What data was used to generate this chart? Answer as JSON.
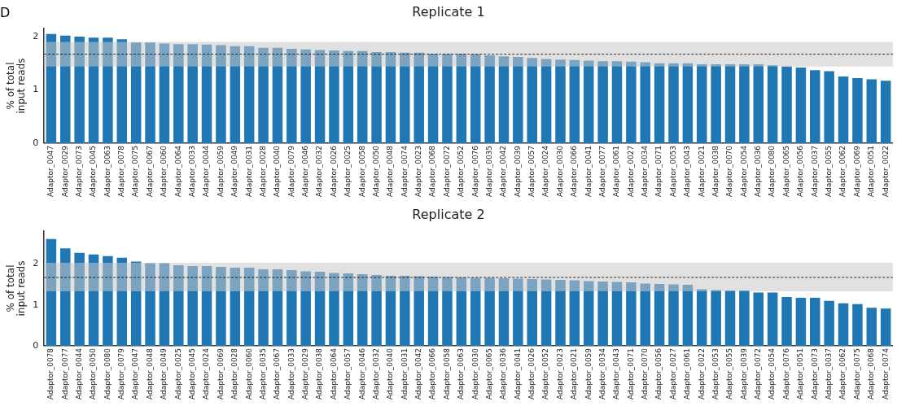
{
  "chart_data": [
    {
      "type": "bar",
      "title": "Replicate 1",
      "ylabel": "% of total\ninput reads",
      "annotations": [
        "D"
      ],
      "categories": [
        "Adaptor_0047",
        "Adaptor_0029",
        "Adaptor_0073",
        "Adaptor_0045",
        "Adaptor_0063",
        "Adaptor_0078",
        "Adaptor_0075",
        "Adaptor_0067",
        "Adaptor_0060",
        "Adaptor_0064",
        "Adaptor_0033",
        "Adaptor_0044",
        "Adaptor_0059",
        "Adaptor_0049",
        "Adaptor_0031",
        "Adaptor_0028",
        "Adaptor_0040",
        "Adaptor_0079",
        "Adaptor_0046",
        "Adaptor_0032",
        "Adaptor_0026",
        "Adaptor_0025",
        "Adaptor_0058",
        "Adaptor_0050",
        "Adaptor_0048",
        "Adaptor_0074",
        "Adaptor_0023",
        "Adaptor_0068",
        "Adaptor_0072",
        "Adaptor_0052",
        "Adaptor_0076",
        "Adaptor_0035",
        "Adaptor_0042",
        "Adaptor_0039",
        "Adaptor_0057",
        "Adaptor_0024",
        "Adaptor_0030",
        "Adaptor_0066",
        "Adaptor_0041",
        "Adaptor_0077",
        "Adaptor_0061",
        "Adaptor_0027",
        "Adaptor_0034",
        "Adaptor_0071",
        "Adaptor_0053",
        "Adaptor_0043",
        "Adaptor_0021",
        "Adaptor_0038",
        "Adaptor_0070",
        "Adaptor_0054",
        "Adaptor_0036",
        "Adaptor_0080",
        "Adaptor_0065",
        "Adaptor_0056",
        "Adaptor_0037",
        "Adaptor_0055",
        "Adaptor_0062",
        "Adaptor_0069",
        "Adaptor_0051",
        "Adaptor_0022"
      ],
      "values": [
        2.05,
        2.02,
        2.0,
        1.98,
        1.98,
        1.95,
        1.89,
        1.89,
        1.87,
        1.86,
        1.86,
        1.85,
        1.84,
        1.82,
        1.82,
        1.79,
        1.79,
        1.77,
        1.76,
        1.75,
        1.74,
        1.73,
        1.73,
        1.71,
        1.71,
        1.7,
        1.7,
        1.68,
        1.68,
        1.68,
        1.67,
        1.65,
        1.63,
        1.62,
        1.6,
        1.58,
        1.57,
        1.56,
        1.55,
        1.54,
        1.54,
        1.53,
        1.52,
        1.5,
        1.5,
        1.5,
        1.48,
        1.48,
        1.48,
        1.48,
        1.48,
        1.46,
        1.44,
        1.42,
        1.37,
        1.35,
        1.25,
        1.22,
        1.2,
        1.17
      ],
      "color": "#1f77b4",
      "ylim": [
        0,
        2.15
      ],
      "yticks": [
        0,
        1,
        2
      ],
      "grid": false,
      "legend": false,
      "ref_lines": [
        {
          "axis": "y",
          "value": 1.67,
          "color": "#000000",
          "line_style": "dashed"
        }
      ],
      "bands": [
        {
          "axis": "y",
          "from": 1.44,
          "to": 1.9,
          "color": "#c8c8c8"
        }
      ]
    },
    {
      "type": "bar",
      "title": "Replicate 2",
      "ylabel": "% of total\ninput reads",
      "categories": [
        "Adaptor_0078",
        "Adaptor_0077",
        "Adaptor_0044",
        "Adaptor_0050",
        "Adaptor_0080",
        "Adaptor_0079",
        "Adaptor_0047",
        "Adaptor_0048",
        "Adaptor_0049",
        "Adaptor_0025",
        "Adaptor_0045",
        "Adaptor_0024",
        "Adaptor_0069",
        "Adaptor_0028",
        "Adaptor_0060",
        "Adaptor_0035",
        "Adaptor_0067",
        "Adaptor_0033",
        "Adaptor_0029",
        "Adaptor_0038",
        "Adaptor_0064",
        "Adaptor_0057",
        "Adaptor_0046",
        "Adaptor_0032",
        "Adaptor_0040",
        "Adaptor_0031",
        "Adaptor_0042",
        "Adaptor_0066",
        "Adaptor_0058",
        "Adaptor_0063",
        "Adaptor_0030",
        "Adaptor_0065",
        "Adaptor_0036",
        "Adaptor_0041",
        "Adaptor_0026",
        "Adaptor_0052",
        "Adaptor_0023",
        "Adaptor_0021",
        "Adaptor_0059",
        "Adaptor_0034",
        "Adaptor_0043",
        "Adaptor_0071",
        "Adaptor_0070",
        "Adaptor_0056",
        "Adaptor_0027",
        "Adaptor_0061",
        "Adaptor_0022",
        "Adaptor_0053",
        "Adaptor_0055",
        "Adaptor_0039",
        "Adaptor_0072",
        "Adaptor_0054",
        "Adaptor_0076",
        "Adaptor_0051",
        "Adaptor_0073",
        "Adaptor_0037",
        "Adaptor_0062",
        "Adaptor_0075",
        "Adaptor_0068",
        "Adaptor_0074"
      ],
      "values": [
        2.61,
        2.38,
        2.27,
        2.23,
        2.19,
        2.15,
        2.06,
        2.02,
        2.02,
        1.97,
        1.95,
        1.95,
        1.93,
        1.91,
        1.91,
        1.87,
        1.87,
        1.85,
        1.82,
        1.81,
        1.78,
        1.77,
        1.75,
        1.73,
        1.71,
        1.71,
        1.7,
        1.69,
        1.68,
        1.67,
        1.66,
        1.66,
        1.65,
        1.64,
        1.63,
        1.62,
        1.61,
        1.6,
        1.58,
        1.57,
        1.56,
        1.55,
        1.52,
        1.51,
        1.5,
        1.49,
        1.38,
        1.36,
        1.35,
        1.35,
        1.3,
        1.3,
        1.19,
        1.17,
        1.17,
        1.1,
        1.04,
        1.02,
        0.93,
        0.91
      ],
      "color": "#1f77b4",
      "ylim": [
        0,
        2.8
      ],
      "yticks": [
        0,
        1,
        2
      ],
      "grid": false,
      "legend": false,
      "ref_lines": [
        {
          "axis": "y",
          "value": 1.67,
          "color": "#000000",
          "line_style": "dashed"
        }
      ],
      "bands": [
        {
          "axis": "y",
          "from": 1.33,
          "to": 2.03,
          "color": "#c8c8c8"
        }
      ]
    }
  ]
}
